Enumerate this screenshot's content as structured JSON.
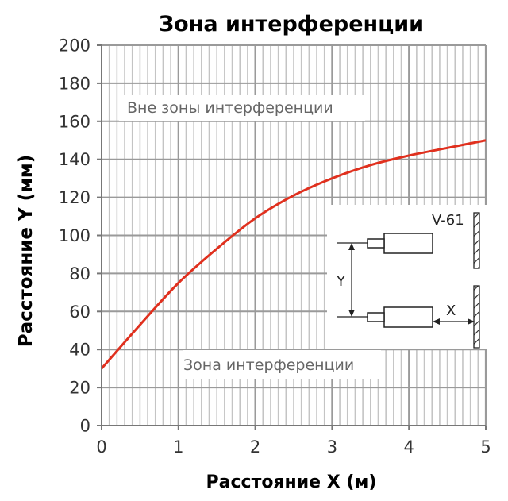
{
  "chart_data": {
    "type": "line",
    "title": "Зона интерференции",
    "xlabel": "Расстояние X (м)",
    "ylabel": "Расстояние Y (мм)",
    "xlim": [
      0,
      5
    ],
    "ylim": [
      0,
      200
    ],
    "x_ticks": [
      "0",
      "1",
      "2",
      "3",
      "4",
      "5"
    ],
    "y_ticks": [
      "0",
      "20",
      "40",
      "60",
      "80",
      "100",
      "120",
      "140",
      "160",
      "180",
      "200"
    ],
    "grid": true,
    "series": [
      {
        "color": "#e0301e",
        "x": [
          0,
          0.5,
          1,
          1.5,
          2,
          2.5,
          3,
          3.5,
          4,
          4.5,
          5
        ],
        "y": [
          30,
          53,
          75,
          93,
          109,
          121,
          130,
          137,
          142,
          146,
          150
        ]
      }
    ],
    "annotations": {
      "outside_zone": "Вне зоны интерференции",
      "inside_zone": "Зона интерференции"
    },
    "diagram": {
      "target_label": "V-61",
      "y_label": "Y",
      "x_label": "X"
    }
  }
}
